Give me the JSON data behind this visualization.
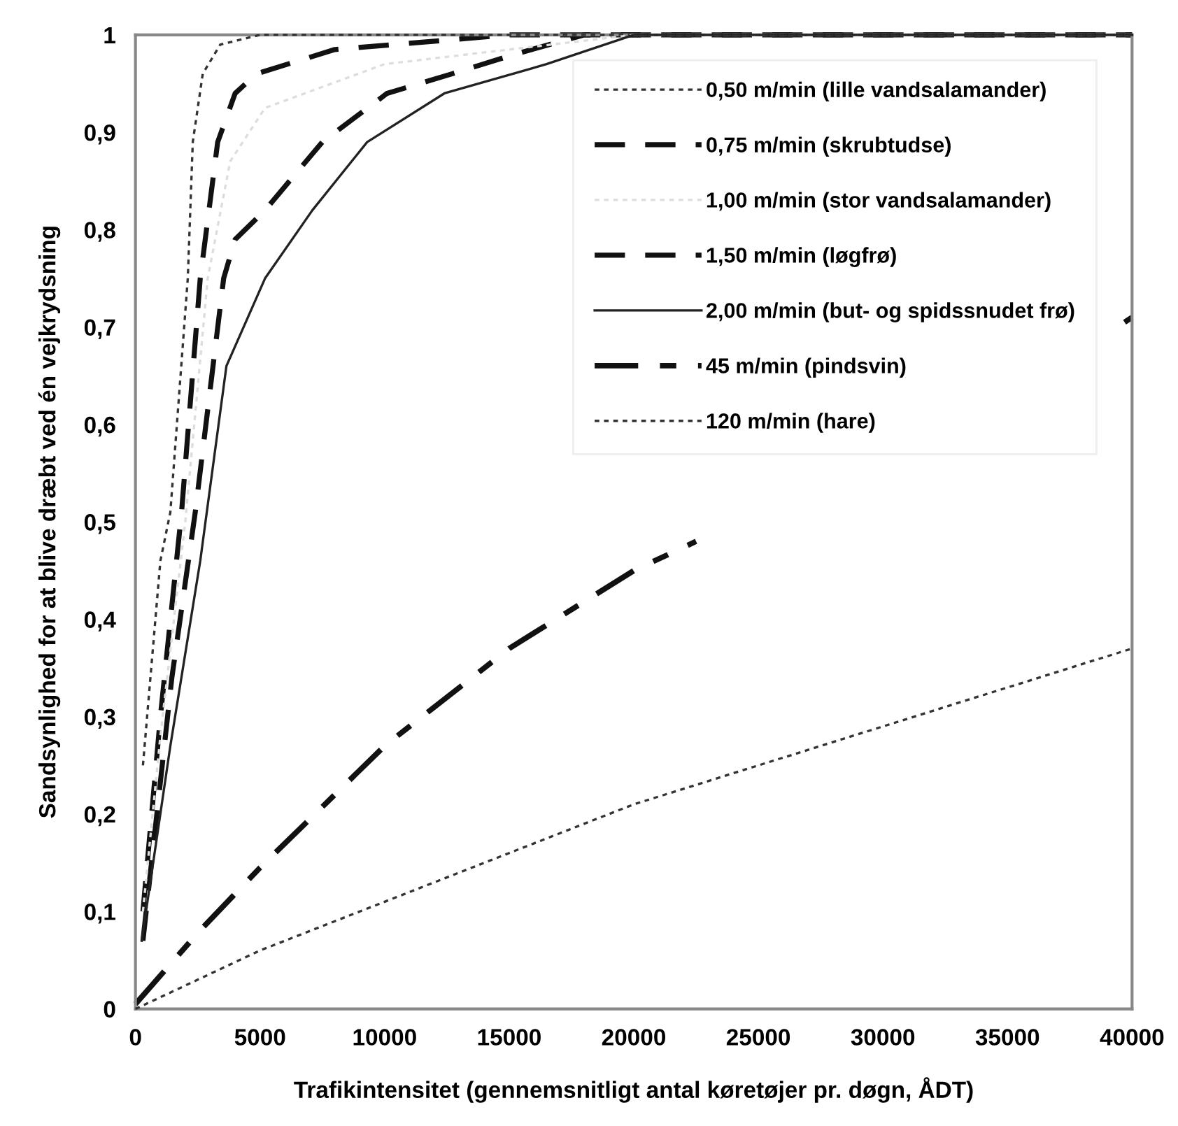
{
  "chart_data": {
    "type": "line",
    "xlabel": "Trafikintensitet (gennemsnitligt antal køretøjer pr. døgn, ÅDT)",
    "ylabel": "Sandsynlighed for at blive dræbt ved én vejkrydsning",
    "xlim": [
      0,
      40000
    ],
    "xticks": [
      0,
      5000,
      10000,
      15000,
      20000,
      25000,
      30000,
      35000,
      40000
    ],
    "ylim": [
      0,
      1
    ],
    "yticks": [
      0,
      {
        "value": 0.1,
        "label": "0,1"
      },
      {
        "value": 0.2,
        "label": "0,2"
      },
      {
        "value": 0.3,
        "label": "0,3"
      },
      {
        "value": 0.4,
        "label": "0,4"
      },
      {
        "value": 0.5,
        "label": "0,5"
      },
      {
        "value": 0.6,
        "label": "0,6"
      },
      {
        "value": 0.7,
        "label": "0,7"
      },
      {
        "value": 0.8,
        "label": "0,8"
      },
      {
        "value": 0.9,
        "label": "0,9"
      },
      1
    ],
    "grid": false,
    "legend": "top right",
    "marker": "none",
    "series": [
      {
        "name": "0,50 m/min (lille vandsalamander)",
        "color": "#333333",
        "line_style": "dotted",
        "x": [
          300,
          1000,
          1400,
          2100,
          2300,
          2700,
          3400,
          5000,
          40000
        ],
        "values": [
          0.25,
          0.46,
          0.51,
          0.75,
          0.89,
          0.96,
          0.99,
          1.0,
          1.0
        ]
      },
      {
        "name": "0,75 m/min (skrubtudse)",
        "color": "#111111",
        "line_style": "dashed",
        "x": [
          300,
          1000,
          1850,
          2600,
          3300,
          4000,
          4850,
          8000,
          15000,
          40000
        ],
        "values": [
          0.1,
          0.3,
          0.51,
          0.75,
          0.89,
          0.94,
          0.96,
          0.985,
          1.0,
          1.0
        ]
      },
      {
        "name": "1,00 m/min (stor vandsalamander)",
        "color": "#dddddd",
        "line_style": "dotted",
        "x": [
          300,
          1000,
          2000,
          2900,
          3800,
          5200,
          10000,
          20000,
          40000
        ],
        "values": [
          0.1,
          0.28,
          0.5,
          0.75,
          0.87,
          0.925,
          0.97,
          1.0,
          1.0
        ]
      },
      {
        "name": "1,50 m/min (løgfrø)",
        "color": "#111111",
        "line_style": "dashed",
        "x": [
          300,
          1460,
          2400,
          3540,
          4000,
          5200,
          7500,
          10100,
          12700,
          15200,
          18000,
          40000
        ],
        "values": [
          0.07,
          0.34,
          0.51,
          0.75,
          0.79,
          0.82,
          0.89,
          0.94,
          0.96,
          0.98,
          1.0,
          1.0
        ]
      },
      {
        "name": "2,00 m/min (but- og spidssnudet frø)",
        "color": "#222222",
        "line_style": "solid",
        "x": [
          250,
          1400,
          2600,
          3650,
          5200,
          7100,
          9300,
          12400,
          16500,
          20000,
          40000
        ],
        "values": [
          0.07,
          0.27,
          0.46,
          0.66,
          0.75,
          0.82,
          0.89,
          0.94,
          0.97,
          1.0,
          1.0
        ]
      },
      {
        "name": "45 m/min (pindsvin)",
        "color": "#111111",
        "line_style": "dashdot",
        "x": [
          0,
          2500,
          5000,
          10000,
          15000,
          20000,
          22500,
          30000,
          39700,
          40000
        ],
        "values": [
          0.005,
          0.078,
          0.145,
          0.27,
          0.37,
          0.45,
          0.48,
          null,
          0.705,
          0.71
        ]
      },
      {
        "name": "120 m/min (hare)",
        "color": "#333333",
        "line_style": "dotted",
        "x": [
          0,
          5000,
          10000,
          15000,
          20000,
          25000,
          30000,
          35000,
          40000
        ],
        "values": [
          0,
          0.06,
          0.11,
          0.16,
          0.21,
          0.25,
          0.29,
          0.33,
          0.37
        ]
      }
    ]
  }
}
